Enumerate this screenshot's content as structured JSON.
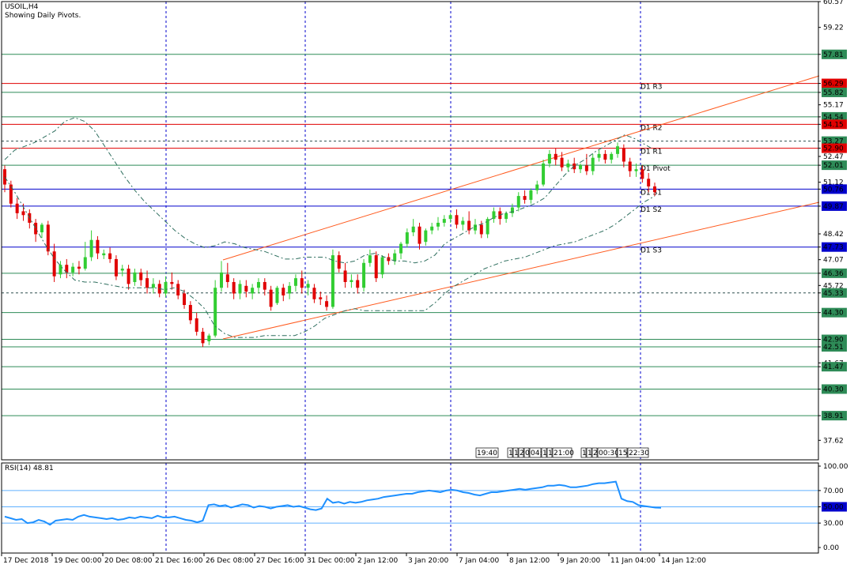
{
  "header": {
    "symbol": "USOIL,H4",
    "subtitle": "Showing Daily Pivots."
  },
  "colors": {
    "up": "#32cd32",
    "down": "#e00000",
    "level": "#2e8b57",
    "pivot_red": "#e00000",
    "pivot_blue": "#0000cc",
    "channel": "#ff5a1e",
    "rsi": "#1e90ff",
    "axis": "#000000",
    "highlight_blue": "#0000cc",
    "highlight_red": "#e00000",
    "highlight_green": "#2e8b57"
  },
  "chart_data": [
    {
      "type": "candlestick",
      "title": "USOIL,H4",
      "ylim": [
        36.6,
        60.57
      ],
      "price_ticks": [
        "60.57",
        "59.22",
        "57.81",
        "56.29",
        "55.82",
        "55.17",
        "54.54",
        "54.15",
        "53.27",
        "52.90",
        "52.47",
        "52.01",
        "51.12",
        "50.76",
        "49.87",
        "48.42",
        "47.73",
        "47.07",
        "46.36",
        "45.72",
        "45.33",
        "44.30",
        "42.90",
        "42.51",
        "41.67",
        "41.47",
        "40.30",
        "38.91",
        "37.62"
      ],
      "highlighted_ticks": [
        {
          "label": "57.81",
          "color": "green"
        },
        {
          "label": "56.29",
          "color": "red"
        },
        {
          "label": "55.82",
          "color": "green"
        },
        {
          "label": "54.54",
          "color": "green"
        },
        {
          "label": "54.15",
          "color": "red"
        },
        {
          "label": "53.27",
          "color": "green"
        },
        {
          "label": "52.90",
          "color": "red"
        },
        {
          "label": "52.01",
          "color": "green"
        },
        {
          "label": "50.76",
          "color": "blue"
        },
        {
          "label": "49.87",
          "color": "blue"
        },
        {
          "label": "47.73",
          "color": "blue"
        },
        {
          "label": "46.36",
          "color": "green"
        },
        {
          "label": "45.33",
          "color": "green"
        },
        {
          "label": "44.30",
          "color": "green"
        },
        {
          "label": "42.90",
          "color": "green"
        },
        {
          "label": "42.51",
          "color": "green"
        },
        {
          "label": "41.47",
          "color": "green"
        },
        {
          "label": "40.30",
          "color": "green"
        },
        {
          "label": "38.91",
          "color": "green"
        }
      ],
      "pivot_levels": [
        {
          "label": "D1 R3",
          "value": 56.29,
          "color": "red"
        },
        {
          "label": "D1 R2",
          "value": 54.15,
          "color": "red"
        },
        {
          "label": "D1 R1",
          "value": 52.9,
          "color": "red"
        },
        {
          "label": "D1 Pivot",
          "value": 52.01,
          "color": "green"
        },
        {
          "label": "D1 S1",
          "value": 50.76,
          "color": "blue"
        },
        {
          "label": "D1 S2",
          "value": 49.87,
          "color": "blue"
        },
        {
          "label": "D1 S3",
          "value": 47.73,
          "color": "blue"
        }
      ],
      "horizontal_levels": [
        57.81,
        55.82,
        54.54,
        53.27,
        46.36,
        45.33,
        44.3,
        42.9,
        42.51,
        41.47,
        40.3,
        38.91
      ],
      "dotted_levels": [
        53.27,
        45.33
      ],
      "x_labels": [
        "17 Dec 2018",
        "19 Dec 00:00",
        "20 Dec 08:00",
        "21 Dec 16:00",
        "26 Dec 08:00",
        "27 Dec 16:00",
        "31 Dec 00:00",
        "2 Jan 12:00",
        "3 Jan 20:00",
        "7 Jan 04:00",
        "8 Jan 12:00",
        "9 Jan 20:00",
        "11 Jan 04:00",
        "14 Jan 12:00"
      ],
      "candles": [
        {
          "o": 51.8,
          "h": 52.0,
          "c": 51.0,
          "l": 50.6
        },
        {
          "o": 51.0,
          "h": 51.2,
          "c": 50.0,
          "l": 49.8
        },
        {
          "o": 50.0,
          "h": 50.3,
          "c": 49.5,
          "l": 49.2
        },
        {
          "o": 49.6,
          "h": 50.0,
          "c": 49.4,
          "l": 49.1
        },
        {
          "o": 49.5,
          "h": 49.7,
          "c": 49.0,
          "l": 48.7
        },
        {
          "o": 49.0,
          "h": 49.2,
          "c": 48.4,
          "l": 48.0
        },
        {
          "o": 48.5,
          "h": 49.0,
          "c": 48.9,
          "l": 48.2
        },
        {
          "o": 48.9,
          "h": 49.1,
          "c": 47.5,
          "l": 47.3
        },
        {
          "o": 47.5,
          "h": 47.9,
          "c": 46.2,
          "l": 45.9
        },
        {
          "o": 46.3,
          "h": 47.0,
          "c": 46.8,
          "l": 46.1
        },
        {
          "o": 46.8,
          "h": 47.1,
          "c": 46.4,
          "l": 46.1
        },
        {
          "o": 46.4,
          "h": 46.9,
          "c": 46.7,
          "l": 46.2
        },
        {
          "o": 46.7,
          "h": 47.0,
          "c": 46.6,
          "l": 46.3
        },
        {
          "o": 46.6,
          "h": 48.0,
          "c": 47.2,
          "l": 46.5
        },
        {
          "o": 47.2,
          "h": 48.6,
          "c": 48.1,
          "l": 47.0
        },
        {
          "o": 48.1,
          "h": 48.3,
          "c": 47.4,
          "l": 47.1
        },
        {
          "o": 47.3,
          "h": 47.6,
          "c": 47.4,
          "l": 47.1
        },
        {
          "o": 47.4,
          "h": 47.7,
          "c": 47.1,
          "l": 46.9
        },
        {
          "o": 47.1,
          "h": 47.3,
          "c": 46.2,
          "l": 46.0
        },
        {
          "o": 46.5,
          "h": 46.8,
          "c": 46.6,
          "l": 46.2
        },
        {
          "o": 46.6,
          "h": 46.8,
          "c": 45.8,
          "l": 45.5
        },
        {
          "o": 45.9,
          "h": 46.6,
          "c": 46.4,
          "l": 45.7
        },
        {
          "o": 46.4,
          "h": 46.6,
          "c": 46.0,
          "l": 45.7
        },
        {
          "o": 46.1,
          "h": 46.5,
          "c": 45.6,
          "l": 45.3
        },
        {
          "o": 45.6,
          "h": 46.1,
          "c": 45.8,
          "l": 45.3
        },
        {
          "o": 45.8,
          "h": 46.0,
          "c": 45.3,
          "l": 45.1
        },
        {
          "o": 45.3,
          "h": 46.2,
          "c": 45.9,
          "l": 45.1
        },
        {
          "o": 45.9,
          "h": 46.4,
          "c": 45.8,
          "l": 45.5
        },
        {
          "o": 45.8,
          "h": 46.0,
          "c": 45.2,
          "l": 45.0
        },
        {
          "o": 45.3,
          "h": 45.5,
          "c": 44.7,
          "l": 44.5
        },
        {
          "o": 44.7,
          "h": 44.9,
          "c": 43.9,
          "l": 43.7
        },
        {
          "o": 44.0,
          "h": 44.3,
          "c": 43.3,
          "l": 43.1
        },
        {
          "o": 43.3,
          "h": 43.5,
          "c": 42.7,
          "l": 42.5
        },
        {
          "o": 42.8,
          "h": 43.2,
          "c": 43.1,
          "l": 42.6
        },
        {
          "o": 43.1,
          "h": 46.0,
          "c": 45.6,
          "l": 43.0
        },
        {
          "o": 45.6,
          "h": 47.0,
          "c": 46.4,
          "l": 45.4
        },
        {
          "o": 46.3,
          "h": 46.9,
          "c": 45.9,
          "l": 45.6
        },
        {
          "o": 45.9,
          "h": 46.1,
          "c": 45.3,
          "l": 45.0
        },
        {
          "o": 45.3,
          "h": 46.0,
          "c": 45.8,
          "l": 45.0
        },
        {
          "o": 45.7,
          "h": 46.0,
          "c": 45.4,
          "l": 45.1
        },
        {
          "o": 45.3,
          "h": 45.8,
          "c": 45.6,
          "l": 45.0
        },
        {
          "o": 45.6,
          "h": 46.1,
          "c": 45.9,
          "l": 45.3
        },
        {
          "o": 45.9,
          "h": 46.1,
          "c": 45.5,
          "l": 45.2
        },
        {
          "o": 45.5,
          "h": 45.7,
          "c": 44.6,
          "l": 44.4
        },
        {
          "o": 44.8,
          "h": 45.7,
          "c": 45.6,
          "l": 44.7
        },
        {
          "o": 45.6,
          "h": 45.8,
          "c": 45.2,
          "l": 44.9
        },
        {
          "o": 45.3,
          "h": 45.9,
          "c": 45.7,
          "l": 45.0
        },
        {
          "o": 45.7,
          "h": 46.3,
          "c": 46.1,
          "l": 45.4
        },
        {
          "o": 46.1,
          "h": 46.5,
          "c": 45.6,
          "l": 45.3
        },
        {
          "o": 45.6,
          "h": 46.0,
          "c": 45.8,
          "l": 45.2
        },
        {
          "o": 45.6,
          "h": 45.8,
          "c": 45.0,
          "l": 44.8
        },
        {
          "o": 45.1,
          "h": 45.4,
          "c": 45.0,
          "l": 44.7
        },
        {
          "o": 44.9,
          "h": 45.2,
          "c": 44.6,
          "l": 44.4
        },
        {
          "o": 44.6,
          "h": 47.6,
          "c": 47.3,
          "l": 44.5
        },
        {
          "o": 47.3,
          "h": 47.5,
          "c": 46.6,
          "l": 46.4
        },
        {
          "o": 46.5,
          "h": 46.9,
          "c": 45.9,
          "l": 45.6
        },
        {
          "o": 45.9,
          "h": 46.3,
          "c": 46.0,
          "l": 45.6
        },
        {
          "o": 46.0,
          "h": 46.3,
          "c": 45.6,
          "l": 45.3
        },
        {
          "o": 45.6,
          "h": 47.1,
          "c": 46.9,
          "l": 45.4
        },
        {
          "o": 46.9,
          "h": 47.6,
          "c": 47.3,
          "l": 46.7
        },
        {
          "o": 47.3,
          "h": 47.5,
          "c": 46.1,
          "l": 45.9
        },
        {
          "o": 46.3,
          "h": 47.3,
          "c": 47.2,
          "l": 46.1
        },
        {
          "o": 47.2,
          "h": 47.4,
          "c": 47.0,
          "l": 46.8
        },
        {
          "o": 47.0,
          "h": 47.6,
          "c": 47.4,
          "l": 46.8
        },
        {
          "o": 47.4,
          "h": 48.0,
          "c": 47.9,
          "l": 47.1
        },
        {
          "o": 47.9,
          "h": 48.7,
          "c": 48.5,
          "l": 47.7
        },
        {
          "o": 48.5,
          "h": 49.2,
          "c": 48.8,
          "l": 48.3
        },
        {
          "o": 48.8,
          "h": 49.0,
          "c": 47.9,
          "l": 47.6
        },
        {
          "o": 48.0,
          "h": 48.7,
          "c": 48.6,
          "l": 47.8
        },
        {
          "o": 48.6,
          "h": 49.0,
          "c": 48.8,
          "l": 48.4
        },
        {
          "o": 48.8,
          "h": 49.3,
          "c": 49.0,
          "l": 48.6
        },
        {
          "o": 49.0,
          "h": 49.4,
          "c": 49.2,
          "l": 48.8
        },
        {
          "o": 49.2,
          "h": 49.5,
          "c": 49.4,
          "l": 49.0
        },
        {
          "o": 49.4,
          "h": 49.7,
          "c": 48.9,
          "l": 48.7
        },
        {
          "o": 48.9,
          "h": 49.3,
          "c": 49.1,
          "l": 48.6
        },
        {
          "o": 49.1,
          "h": 49.6,
          "c": 48.6,
          "l": 48.4
        },
        {
          "o": 48.6,
          "h": 49.2,
          "c": 48.9,
          "l": 48.4
        },
        {
          "o": 48.9,
          "h": 49.1,
          "c": 48.4,
          "l": 48.2
        },
        {
          "o": 48.4,
          "h": 49.3,
          "c": 49.2,
          "l": 48.2
        },
        {
          "o": 49.2,
          "h": 49.8,
          "c": 49.6,
          "l": 49.0
        },
        {
          "o": 49.6,
          "h": 49.8,
          "c": 49.2,
          "l": 48.9
        },
        {
          "o": 49.2,
          "h": 49.6,
          "c": 49.5,
          "l": 49.0
        },
        {
          "o": 49.5,
          "h": 50.0,
          "c": 49.8,
          "l": 49.3
        },
        {
          "o": 49.8,
          "h": 50.6,
          "c": 50.4,
          "l": 49.6
        },
        {
          "o": 50.4,
          "h": 50.7,
          "c": 50.2,
          "l": 50.0
        },
        {
          "o": 50.2,
          "h": 50.8,
          "c": 50.7,
          "l": 50.0
        },
        {
          "o": 50.7,
          "h": 51.2,
          "c": 51.0,
          "l": 50.5
        },
        {
          "o": 51.0,
          "h": 52.3,
          "c": 52.1,
          "l": 50.9
        },
        {
          "o": 52.1,
          "h": 52.8,
          "c": 52.6,
          "l": 51.9
        },
        {
          "o": 52.6,
          "h": 52.9,
          "c": 52.3,
          "l": 52.0
        },
        {
          "o": 52.4,
          "h": 52.7,
          "c": 51.9,
          "l": 51.7
        },
        {
          "o": 51.9,
          "h": 52.3,
          "c": 52.1,
          "l": 51.7
        },
        {
          "o": 52.1,
          "h": 52.4,
          "c": 51.8,
          "l": 51.6
        },
        {
          "o": 51.8,
          "h": 52.1,
          "c": 52.0,
          "l": 51.6
        },
        {
          "o": 52.0,
          "h": 52.6,
          "c": 51.7,
          "l": 51.5
        },
        {
          "o": 51.7,
          "h": 52.6,
          "c": 52.4,
          "l": 51.5
        },
        {
          "o": 52.4,
          "h": 52.8,
          "c": 52.6,
          "l": 52.2
        },
        {
          "o": 52.6,
          "h": 52.8,
          "c": 52.3,
          "l": 52.1
        },
        {
          "o": 52.3,
          "h": 52.7,
          "c": 52.6,
          "l": 52.1
        },
        {
          "o": 52.6,
          "h": 53.2,
          "c": 53.0,
          "l": 52.4
        },
        {
          "o": 52.9,
          "h": 53.1,
          "c": 52.2,
          "l": 51.9
        },
        {
          "o": 52.2,
          "h": 52.4,
          "c": 51.7,
          "l": 51.4
        },
        {
          "o": 51.7,
          "h": 52.1,
          "c": 51.8,
          "l": 51.4
        },
        {
          "o": 51.8,
          "h": 52.0,
          "c": 51.3,
          "l": 51.1
        },
        {
          "o": 51.3,
          "h": 51.6,
          "c": 50.9,
          "l": 50.6
        },
        {
          "o": 50.9,
          "h": 51.1,
          "c": 50.6,
          "l": 50.4
        }
      ],
      "upper_band": [
        52.3,
        52.8,
        53.0,
        53.2,
        53.5,
        53.8,
        54.3,
        54.5,
        54.3,
        53.8,
        53.0,
        52.2,
        51.4,
        50.7,
        50.1,
        49.6,
        49.1,
        48.6,
        48.2,
        47.9,
        47.7,
        47.8,
        48.0,
        47.9,
        47.7,
        47.6,
        47.5,
        47.3,
        47.1,
        47.1,
        47.2,
        47.2,
        47.2,
        47.0,
        46.9,
        47.0,
        47.3,
        47.4,
        47.2,
        47.0,
        47.0,
        46.9,
        47.0,
        47.3,
        47.9,
        48.2,
        48.5,
        48.8,
        49.0,
        49.3,
        49.5,
        49.6,
        49.8,
        50.0,
        50.3,
        50.9,
        51.5,
        52.0,
        52.3,
        52.7,
        53.0,
        53.3,
        53.6,
        53.4,
        53.1,
        52.8
      ],
      "lower_band": [
        51.4,
        50.6,
        49.7,
        48.8,
        47.9,
        47.1,
        46.5,
        46.0,
        45.9,
        45.9,
        45.8,
        45.7,
        45.6,
        45.6,
        45.6,
        45.6,
        45.5,
        45.6,
        45.4,
        45.0,
        44.5,
        43.6,
        43.2,
        43.0,
        43.0,
        43.0,
        43.1,
        43.1,
        43.1,
        43.1,
        43.3,
        43.6,
        44.0,
        44.2,
        44.4,
        44.5,
        44.4,
        44.4,
        44.4,
        44.4,
        44.4,
        44.4,
        44.4,
        44.8,
        45.3,
        45.7,
        46.0,
        46.3,
        46.6,
        46.8,
        47.0,
        47.1,
        47.2,
        47.4,
        47.6,
        47.8,
        47.9,
        48.0,
        48.2,
        48.4,
        48.6,
        48.9,
        49.3,
        49.7,
        50.1,
        50.4
      ],
      "channel": [
        {
          "x1": 282,
          "y1": 429,
          "x2": 1036,
          "y2": 256
        },
        {
          "x1": 282,
          "y1": 329,
          "x2": 1036,
          "y2": 96
        }
      ]
    },
    {
      "type": "line",
      "title": "RSI(14) 48.81",
      "name": "RSI(14)",
      "ylim": [
        0,
        100
      ],
      "ticks": [
        "100.00",
        "70.00",
        "50.00",
        "30.00",
        "0.00"
      ],
      "highlighted_ticks": [
        {
          "label": "50.00",
          "color": "blue"
        }
      ],
      "values": [
        38,
        36,
        34,
        35,
        30,
        31,
        34,
        32,
        28,
        33,
        34,
        35,
        34,
        38,
        40,
        38,
        37,
        36,
        35,
        36,
        34,
        35,
        37,
        36,
        38,
        37,
        36,
        39,
        37,
        37,
        38,
        36,
        34,
        33,
        31,
        33,
        52,
        53,
        51,
        52,
        49,
        51,
        53,
        52,
        49,
        51,
        50,
        48,
        50,
        51,
        52,
        50,
        51,
        49,
        47,
        46,
        48,
        60,
        55,
        56,
        54,
        56,
        55,
        56,
        58,
        59,
        60,
        62,
        63,
        64,
        65,
        66,
        66,
        68,
        69,
        70,
        69,
        68,
        70,
        71,
        70,
        68,
        67,
        65,
        64,
        66,
        68,
        68,
        69,
        70,
        71,
        72,
        71,
        72,
        73,
        74,
        76,
        76,
        77,
        76,
        74,
        74,
        75,
        76,
        78,
        79,
        79,
        80,
        81,
        60,
        57,
        56,
        52,
        51,
        50,
        49,
        48.81
      ]
    }
  ],
  "main_markers": {
    "labels": [
      "19:40",
      "1",
      "1",
      "2",
      "0",
      "04:",
      "1",
      "1",
      "21:00",
      "1",
      "1",
      "2",
      "00:30",
      "15:",
      "22:30"
    ]
  },
  "rsi_header": "RSI(14) 48.81"
}
